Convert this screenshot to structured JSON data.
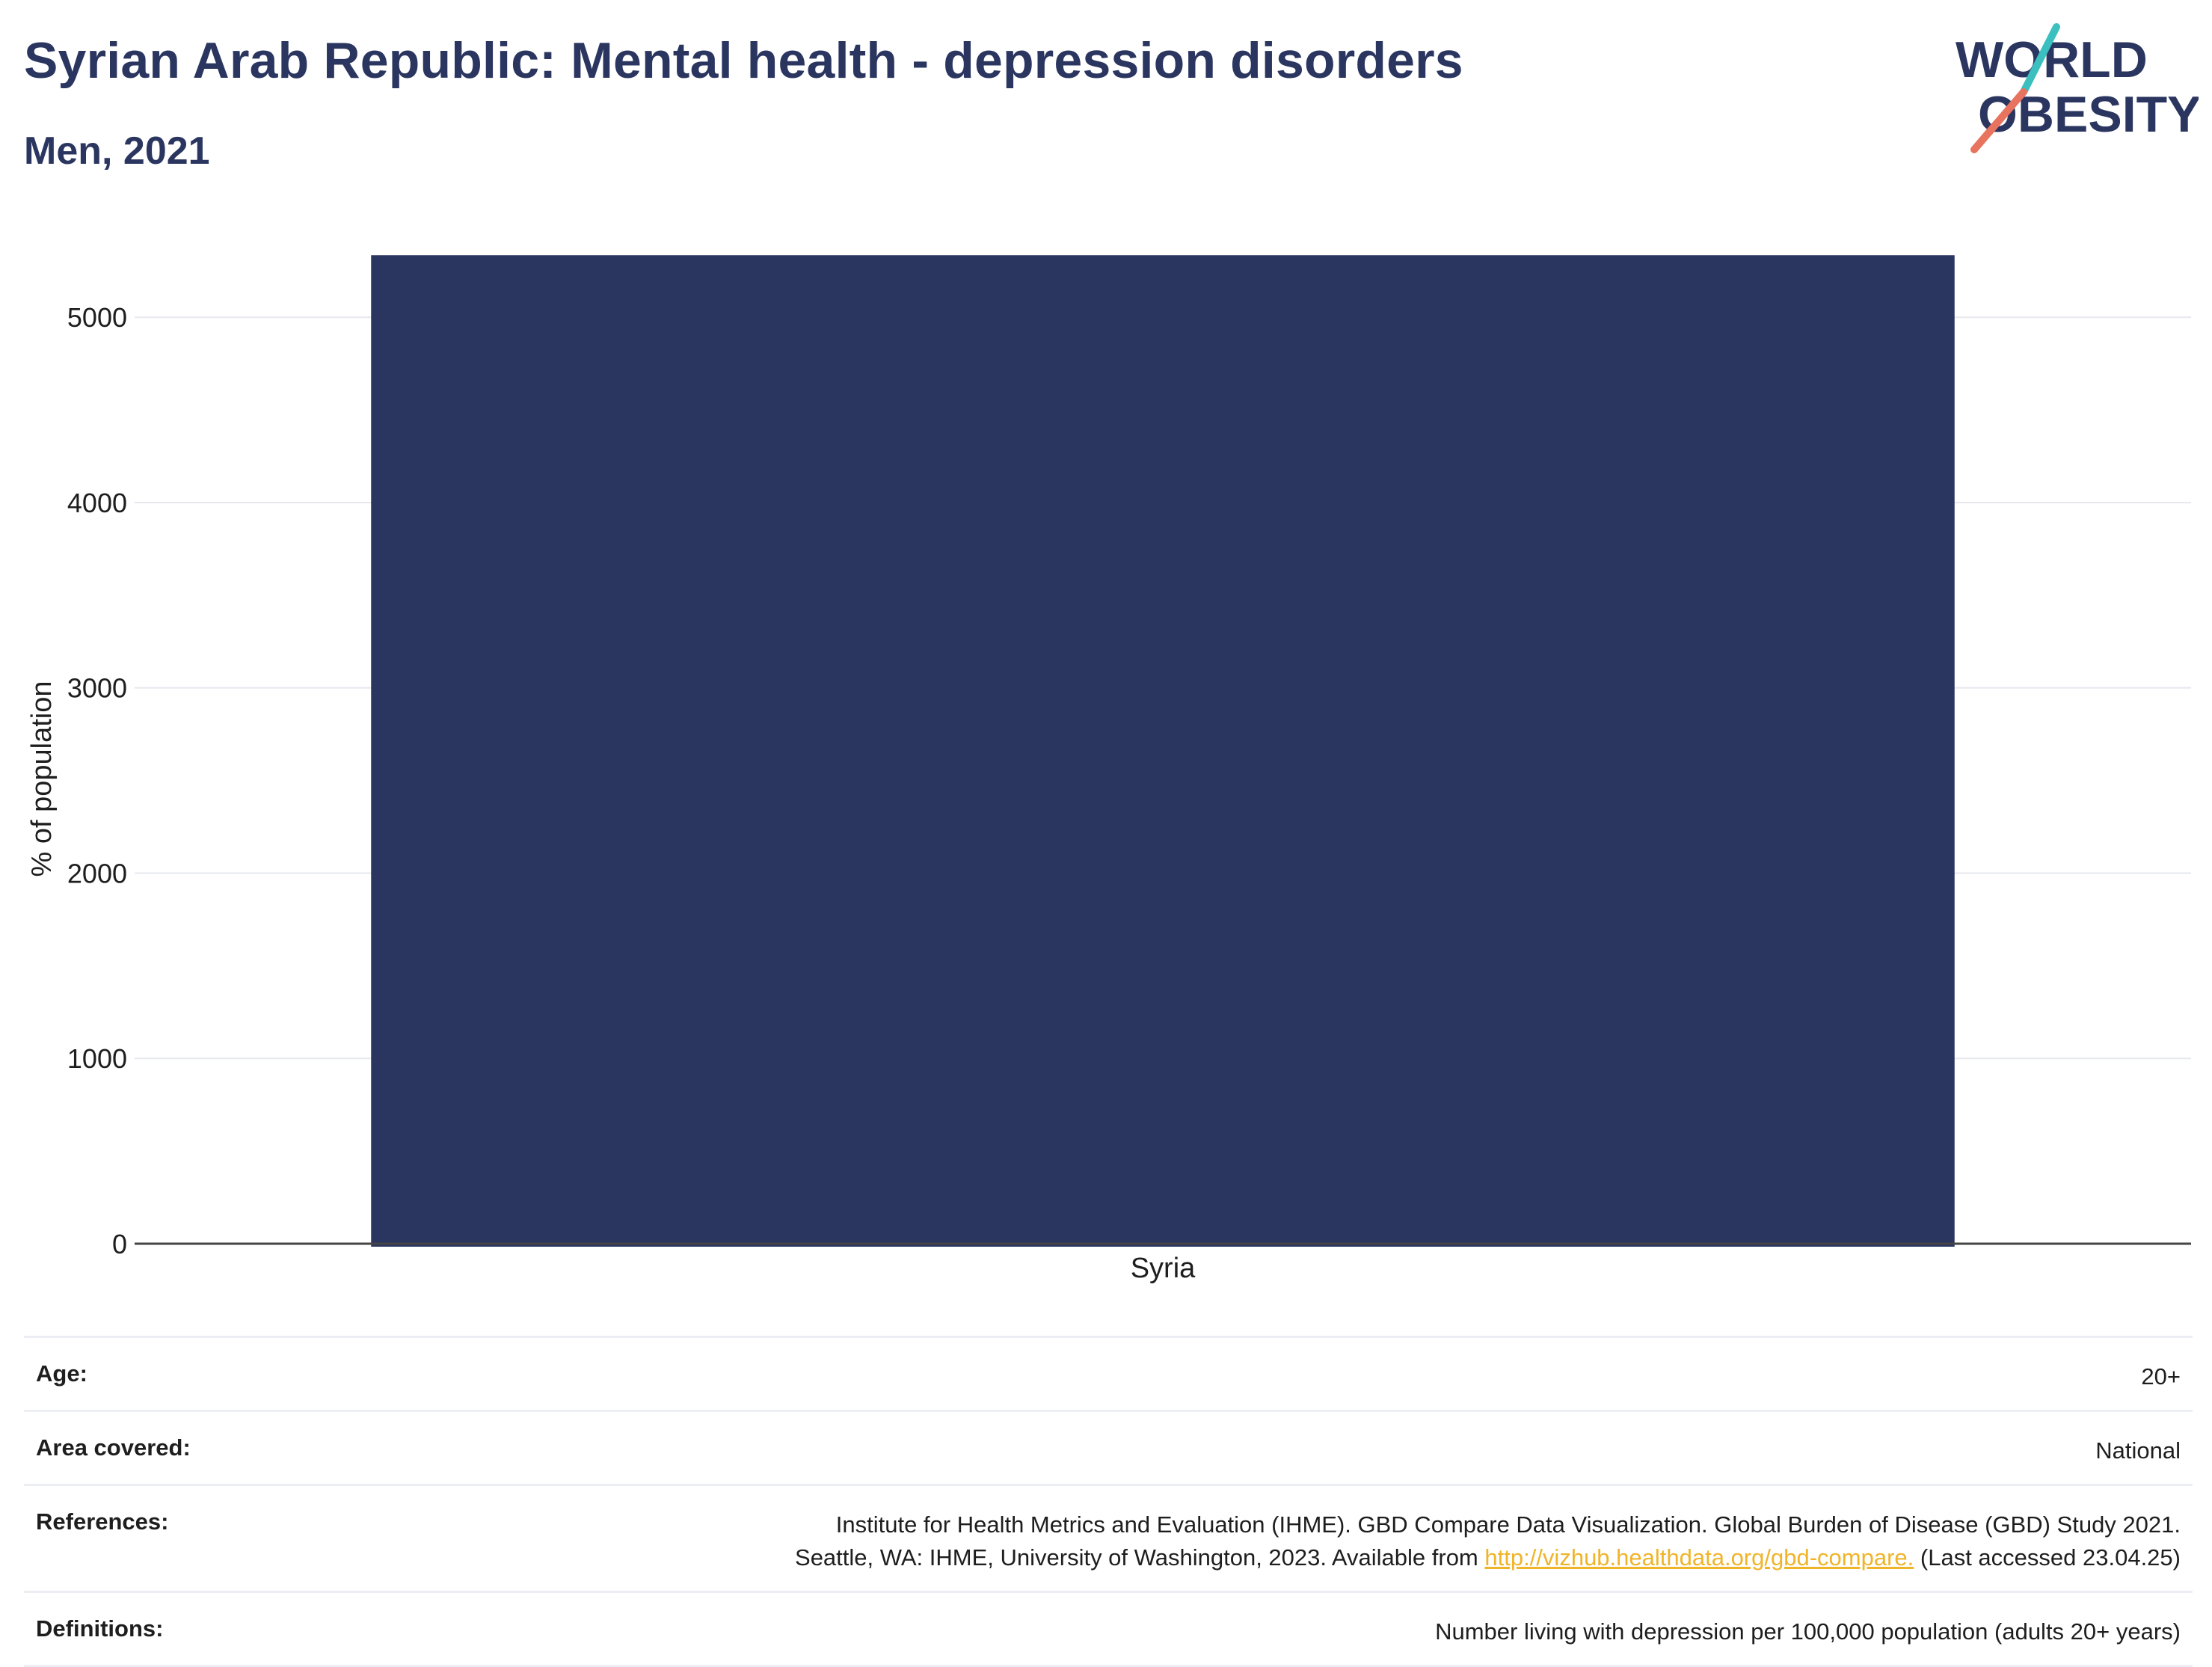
{
  "header": {
    "title": "Syrian Arab Republic: Mental health - depression disorders",
    "subtitle": "Men, 2021"
  },
  "logo": {
    "line1": "WORLD",
    "line2": "OBESITY",
    "colors": {
      "text": "#2b3660",
      "slash_top": "#3bbfbf",
      "slash_bottom": "#e8735f"
    }
  },
  "chart_data": {
    "type": "bar",
    "categories": [
      "Syria"
    ],
    "values": [
      5335
    ],
    "ylabel": "% of population",
    "xlabel": "",
    "ylim": [
      0,
      5340
    ],
    "yticks": [
      0,
      1000,
      2000,
      3000,
      4000,
      5000
    ],
    "grid": true,
    "bar_color": "#2b3660"
  },
  "info": {
    "age": {
      "label": "Age:",
      "value": "20+"
    },
    "area": {
      "label": "Area covered:",
      "value": "National"
    },
    "references": {
      "label": "References:",
      "line1": "Institute for Health Metrics and Evaluation (IHME). GBD Compare Data Visualization. Global Burden of Disease (GBD) Study 2021.",
      "line2_prefix": "Seattle, WA: IHME, University of Washington, 2023. Available from",
      "link": "http://vizhub.healthdata.org/gbd-compare.",
      "line2_suffix": "(Last accessed 23.04.25)"
    },
    "definitions": {
      "label": "Definitions:",
      "value": "Number living with depression per 100,000 population (adults 20+ years)"
    }
  }
}
